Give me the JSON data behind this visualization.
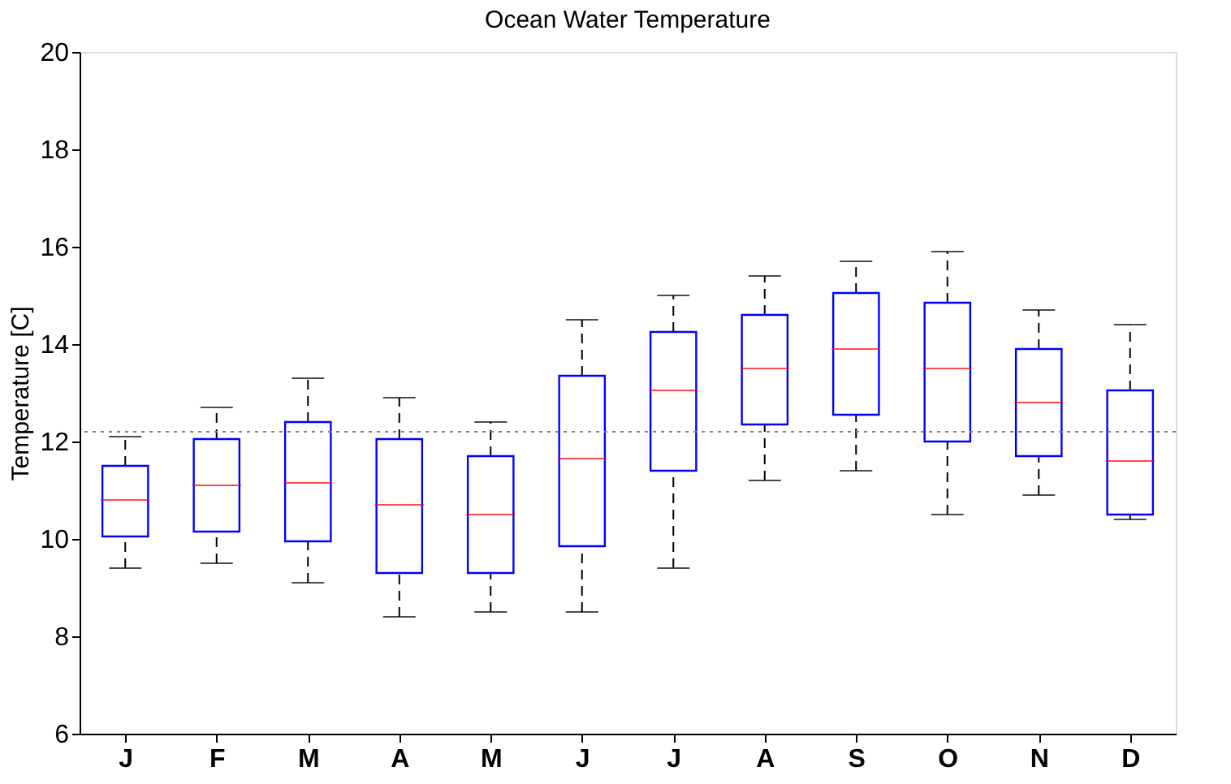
{
  "chart_data": {
    "type": "box",
    "title": "Ocean Water Temperature",
    "ylabel": "Temperature [C]",
    "categories": [
      "J",
      "F",
      "M",
      "A",
      "M",
      "J",
      "J",
      "A",
      "S",
      "O",
      "N",
      "D"
    ],
    "color": "#0000ff",
    "boxes": [
      {
        "low": 9.4,
        "q1": 10.05,
        "median": 10.8,
        "q3": 11.5,
        "high": 12.1
      },
      {
        "low": 9.5,
        "q1": 10.15,
        "median": 11.1,
        "q3": 12.05,
        "high": 12.7
      },
      {
        "low": 9.1,
        "q1": 9.95,
        "median": 11.15,
        "q3": 12.4,
        "high": 13.3
      },
      {
        "low": 8.4,
        "q1": 9.3,
        "median": 10.7,
        "q3": 12.05,
        "high": 12.9
      },
      {
        "low": 8.5,
        "q1": 9.3,
        "median": 10.5,
        "q3": 11.7,
        "high": 12.4
      },
      {
        "low": 8.5,
        "q1": 9.85,
        "median": 11.65,
        "q3": 13.35,
        "high": 14.5
      },
      {
        "low": 9.4,
        "q1": 11.4,
        "median": 13.05,
        "q3": 14.25,
        "high": 15.0
      },
      {
        "low": 11.2,
        "q1": 12.35,
        "median": 13.5,
        "q3": 14.6,
        "high": 15.4
      },
      {
        "low": 11.4,
        "q1": 12.55,
        "median": 13.9,
        "q3": 15.05,
        "high": 15.7
      },
      {
        "low": 10.5,
        "q1": 12.0,
        "median": 13.5,
        "q3": 14.85,
        "high": 15.9
      },
      {
        "low": 10.9,
        "q1": 11.7,
        "median": 12.8,
        "q3": 13.9,
        "high": 14.7
      },
      {
        "low": 10.4,
        "q1": 10.5,
        "median": 11.6,
        "q3": 13.05,
        "high": 14.4
      }
    ],
    "ylim": [
      6,
      20
    ],
    "yticks": [
      6,
      8,
      10,
      12,
      14,
      16,
      18,
      20
    ],
    "ref_lines": [
      {
        "axis": "y",
        "value": 12.2,
        "color": "#808080",
        "line_style": "dotted"
      }
    ],
    "grid": false
  }
}
